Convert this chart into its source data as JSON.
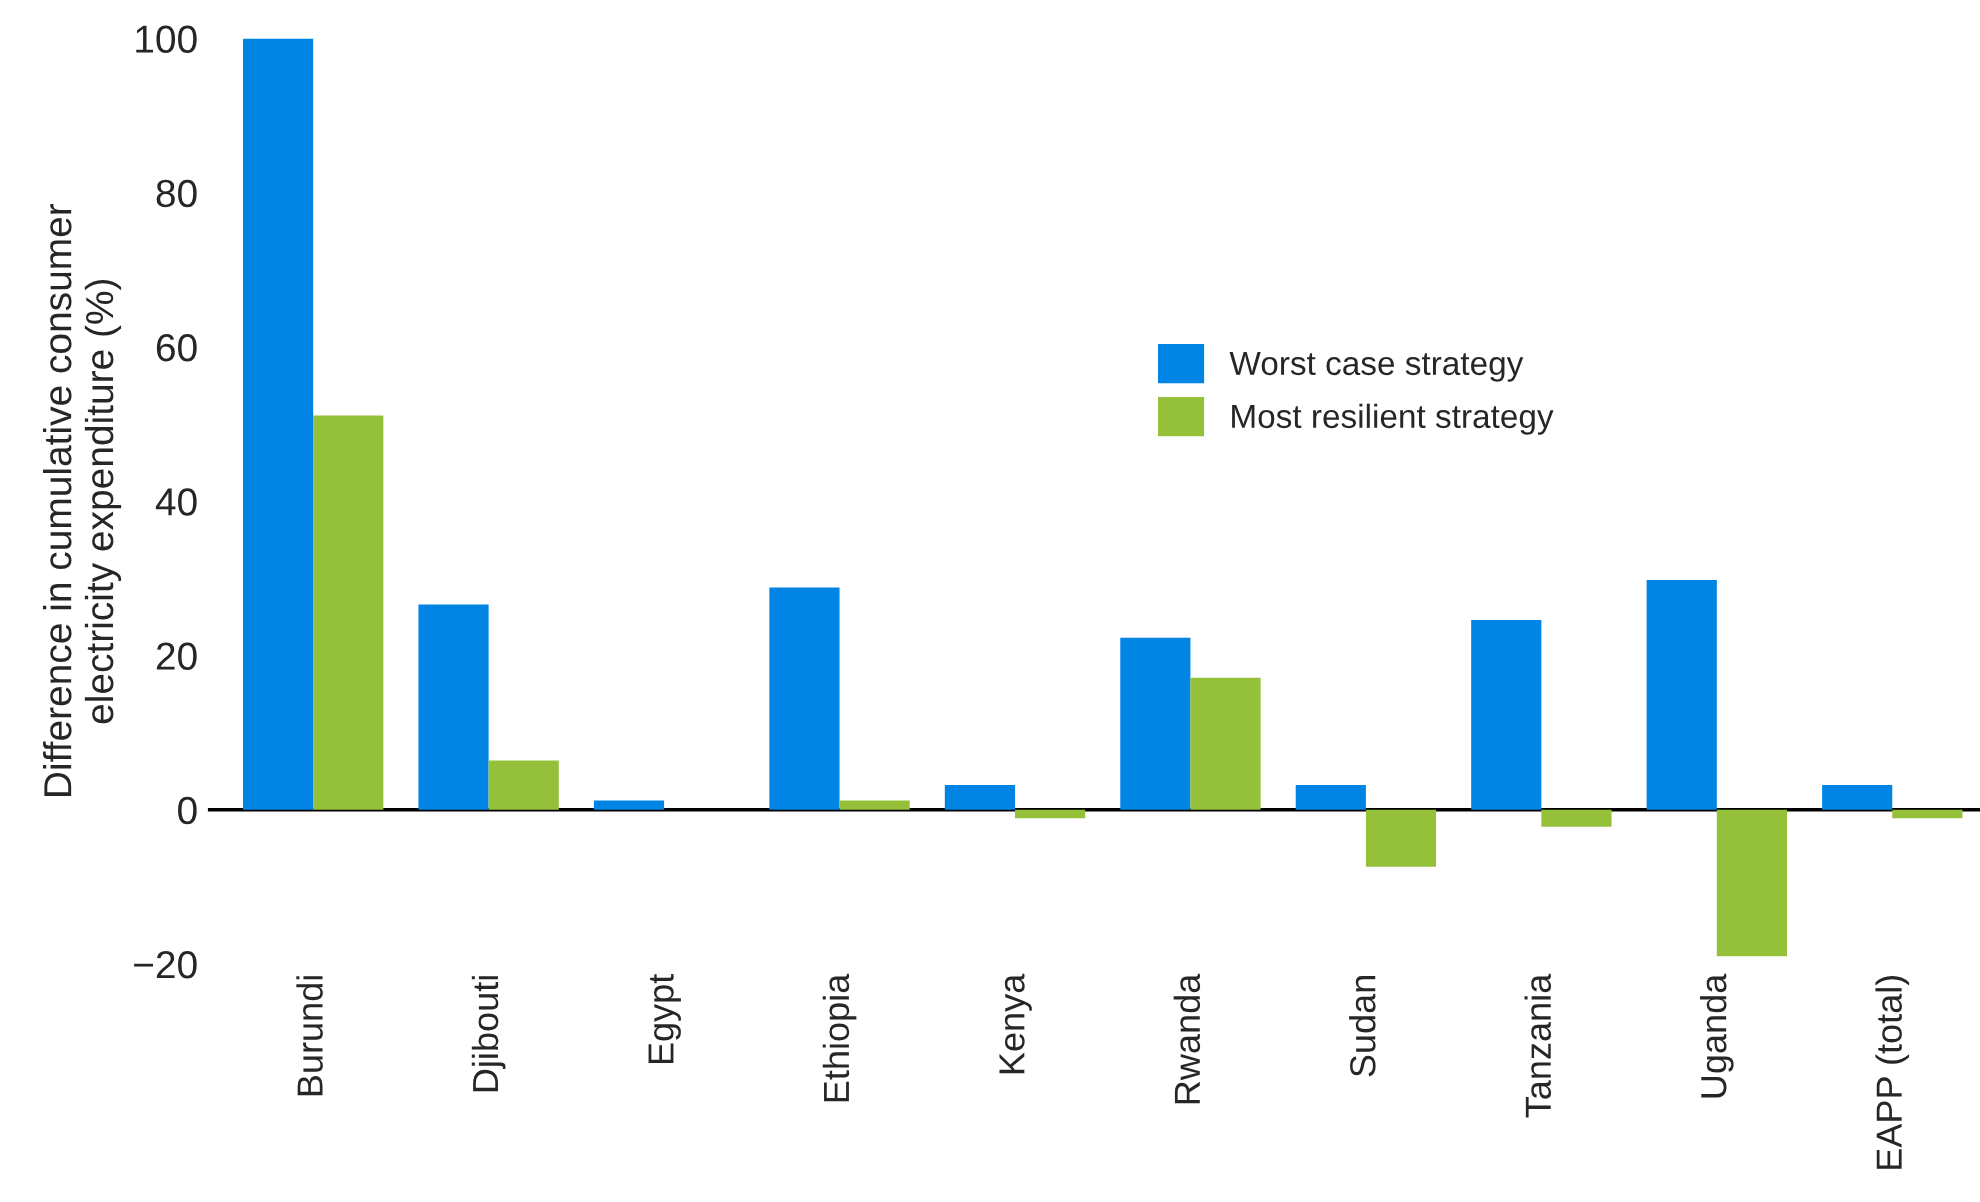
{
  "chart_data": {
    "type": "bar",
    "ylabel": "Difference in cumulative consumer\nelectricity expenditure (%)",
    "categories": [
      "Burundi",
      "Djibouti",
      "Egypt",
      "Ethiopia",
      "Kenya",
      "Rwanda",
      "Sudan",
      "Tanzania",
      "Uganda",
      "EAPP (total)"
    ],
    "series": [
      {
        "name": "Worst case strategy",
        "color": "#0085e5",
        "values": [
          100,
          26.6,
          1.2,
          28.8,
          3.2,
          22.3,
          3.2,
          24.6,
          29.8,
          3.2
        ]
      },
      {
        "name": "Most resilient strategy",
        "color": "#95c13a",
        "values": [
          51.1,
          6.4,
          0,
          1.2,
          -1.1,
          17.1,
          -7.4,
          -2.2,
          -19,
          -1.1
        ]
      }
    ],
    "ylim": [
      -20,
      100
    ],
    "yticks": [
      {
        "value": -20,
        "label": "−20"
      },
      0,
      20,
      40,
      60,
      80,
      100
    ],
    "ref_lines": [
      {
        "axis": "y",
        "value": 0,
        "color": "#000000"
      }
    ],
    "grid": false,
    "legend": "right"
  }
}
